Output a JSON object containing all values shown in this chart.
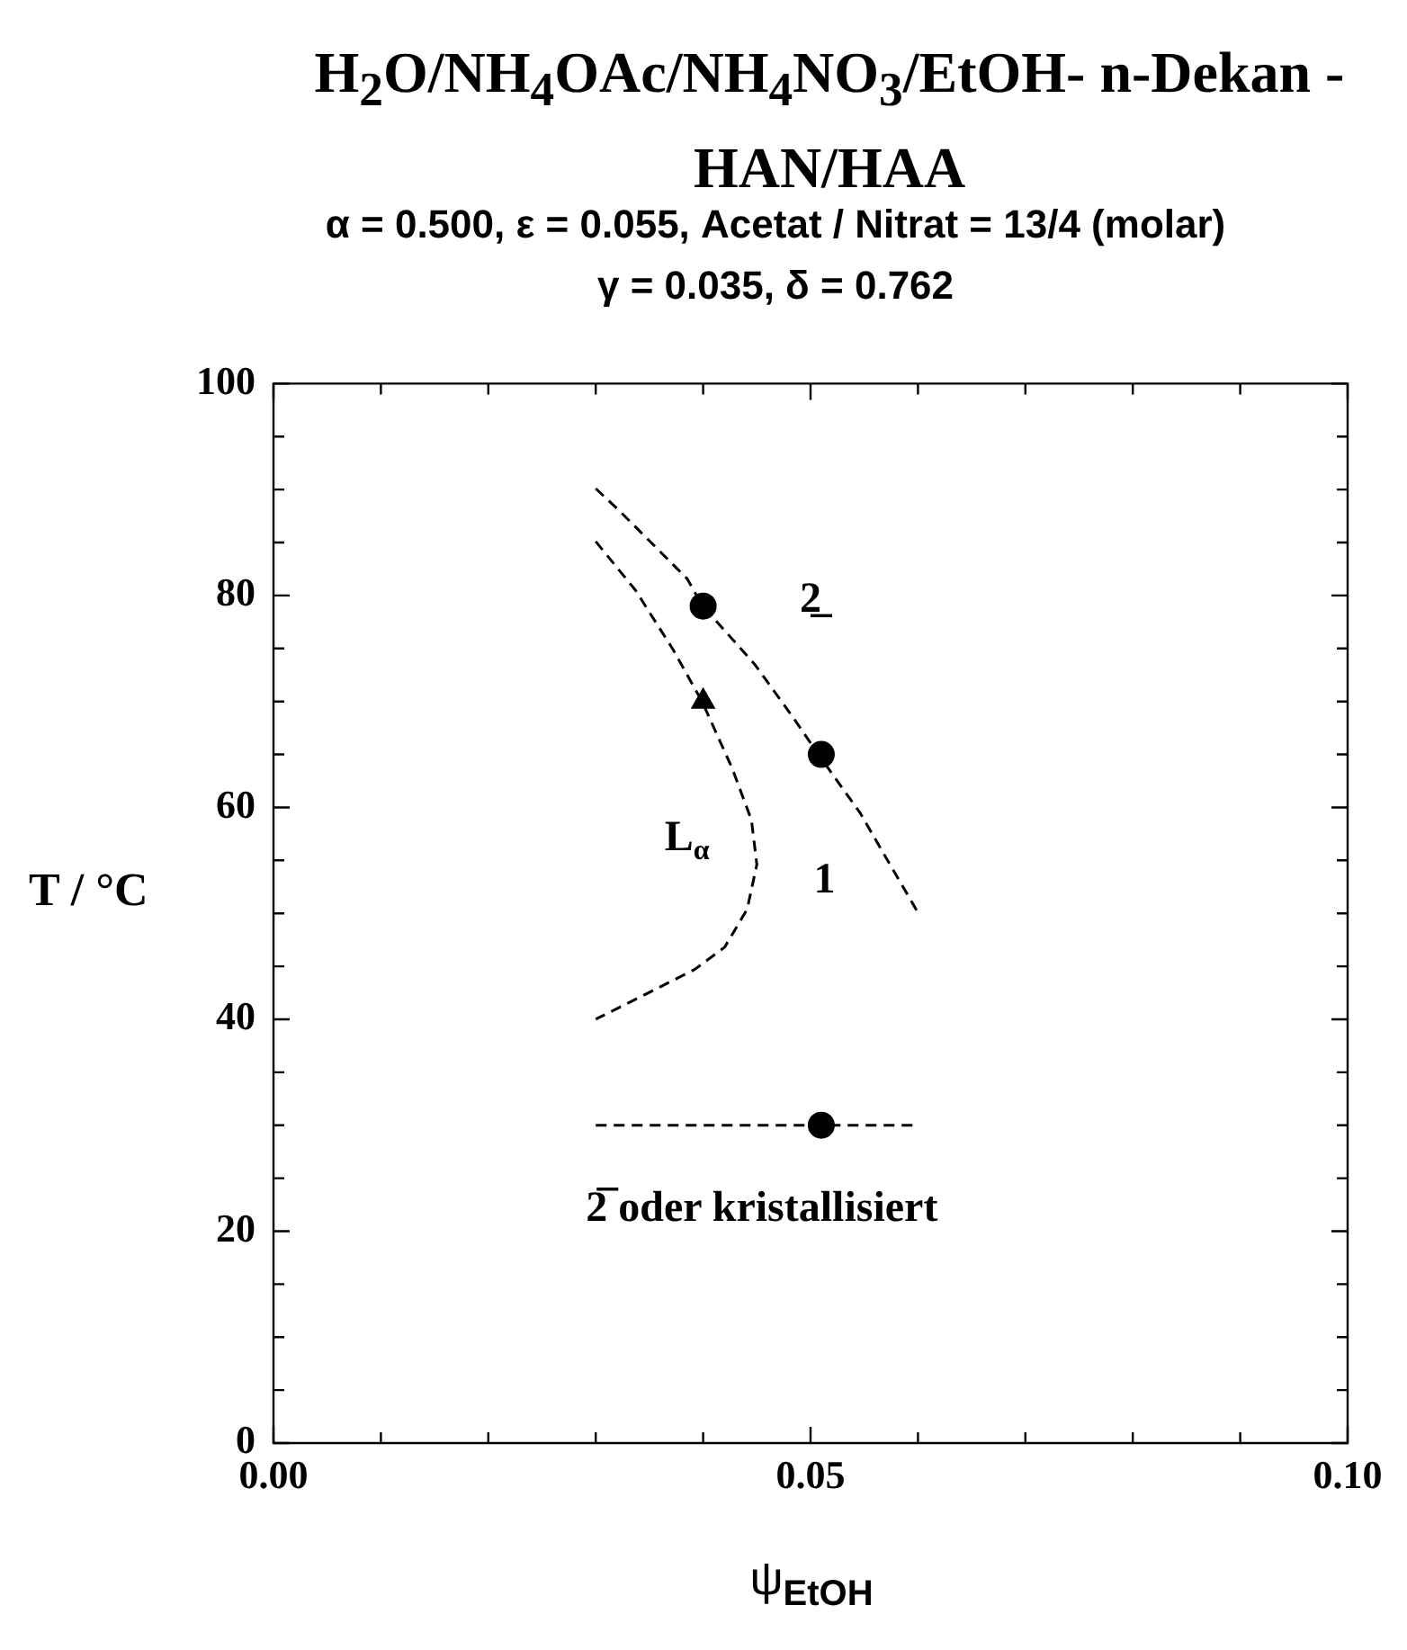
{
  "chart_data": {
    "type": "line",
    "title": "H$_{2}$O/NH$_{4}$OAc/NH$_{4}$NO$_{3}$/EtOH- n-Dekan - HAN/HAA",
    "subtitle": "α = 0.500, ε = 0.055,  Acetat / Nitrat = 13/4 (molar)\nγ = 0.035, δ = 0.762",
    "xlabel": "ψ$_{EtOH}$",
    "ylabel": "T / °C",
    "xlim": [
      0,
      0.1
    ],
    "ylim": [
      0,
      100
    ],
    "xticks": [
      {
        "value": 0,
        "label": "0.00"
      },
      {
        "value": 0.01,
        "label": null
      },
      {
        "value": 0.02,
        "label": null
      },
      {
        "value": 0.03,
        "label": null
      },
      {
        "value": 0.04,
        "label": null
      },
      {
        "value": 0.05,
        "label": "0.05"
      },
      {
        "value": 0.06,
        "label": null
      },
      {
        "value": 0.07,
        "label": null
      },
      {
        "value": 0.08,
        "label": null
      },
      {
        "value": 0.09,
        "label": null
      },
      {
        "value": 0.1,
        "label": "0.10"
      }
    ],
    "yticks": [
      0,
      {
        "value": 5,
        "label": null
      },
      {
        "value": 10,
        "label": null
      },
      {
        "value": 15,
        "label": null
      },
      20,
      {
        "value": 25,
        "label": null
      },
      {
        "value": 30,
        "label": null
      },
      {
        "value": 35,
        "label": null
      },
      40,
      {
        "value": 45,
        "label": null
      },
      {
        "value": 50,
        "label": null
      },
      {
        "value": 55,
        "label": null
      },
      60,
      {
        "value": 65,
        "label": null
      },
      {
        "value": 70,
        "label": null
      },
      {
        "value": 75,
        "label": null
      },
      80,
      {
        "value": 85,
        "label": null
      },
      {
        "value": 90,
        "label": null
      },
      {
        "value": 95,
        "label": null
      },
      100
    ],
    "grid": false,
    "series": [
      {
        "color": "#000000",
        "line_style": "dashed",
        "marker": "none",
        "x": [
          0.03,
          0.0323,
          0.0385,
          0.0399,
          0.0448,
          0.0483,
          0.0508,
          0.0546,
          0.0574,
          0.0601
        ],
        "values": [
          90.1,
          87.9,
          81.6,
          79.1,
          73.5,
          68.6,
          64.9,
          59.5,
          54.6,
          49.9
        ]
      },
      {
        "color": "#000000",
        "line_style": "dashed",
        "marker": "none",
        "x": [
          0.03,
          0.0337,
          0.0372,
          0.0399,
          0.0427,
          0.0445,
          0.045,
          0.0441,
          0.042,
          0.0392,
          0.0351,
          0.03
        ],
        "values": [
          85.1,
          80.5,
          74.9,
          70,
          63.7,
          58.8,
          54.6,
          50.4,
          46.8,
          44.7,
          42.6,
          40
        ]
      },
      {
        "color": "#000000",
        "line_style": "dashed",
        "marker": "none",
        "x": [
          0.03,
          0.06
        ],
        "values": [
          30,
          30
        ]
      },
      {
        "type": "scatter",
        "color": "#000000",
        "marker": "circle",
        "x": [
          0.04,
          0.051,
          0.051
        ],
        "values": [
          79,
          65,
          30
        ]
      },
      {
        "type": "scatter",
        "color": "#000000",
        "marker": "triangle",
        "x": [
          0.04
        ],
        "values": [
          70
        ]
      }
    ],
    "annotations": [
      "2̲",
      "L$_{α}$",
      "1",
      "2̅ oder kristallisiert"
    ]
  }
}
